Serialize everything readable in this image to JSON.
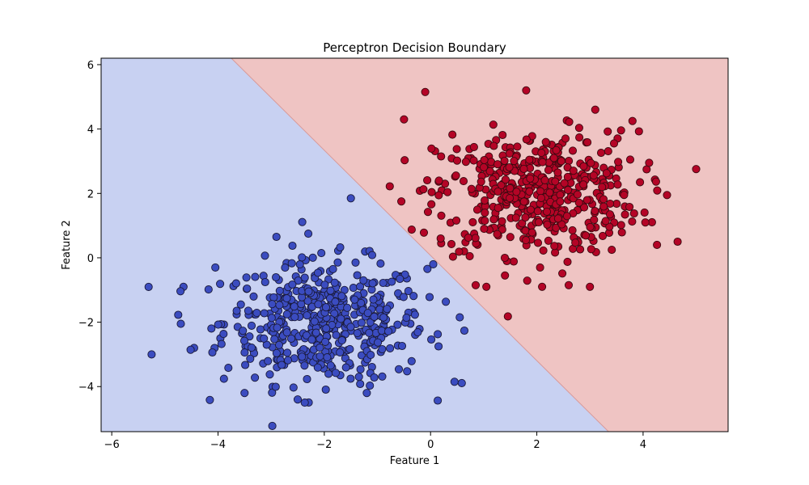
{
  "chart_data": {
    "type": "scatter",
    "title": "Perceptron Decision Boundary",
    "xlabel": "Feature 1",
    "ylabel": "Feature 2",
    "xlim": [
      -6.2,
      5.6
    ],
    "ylim": [
      -5.4,
      6.2
    ],
    "x_ticks": [
      -6,
      -4,
      -2,
      0,
      2,
      4
    ],
    "y_ticks": [
      -4,
      -2,
      0,
      2,
      4,
      6
    ],
    "x_tick_labels": [
      "−6",
      "−4",
      "−2",
      "0",
      "2",
      "4"
    ],
    "y_tick_labels": [
      "−4",
      "−2",
      "0",
      "2",
      "4",
      "6"
    ],
    "grid": false,
    "legend": "none",
    "decision_boundary": {
      "description": "linear boundary separating two regions",
      "points": [
        [
          -3.75,
          6.2
        ],
        [
          3.35,
          -5.4
        ]
      ],
      "region_colors": {
        "class_0": "#c8d1f2",
        "class_1": "#efc4c3"
      }
    },
    "series": [
      {
        "class": 0,
        "color": "#3b4cc0",
        "edge_color": "#1a1a3a",
        "center": [
          -2.0,
          -2.0
        ],
        "spread": 1.0,
        "count": 500,
        "outlier_points": [
          [
            -5.25,
            -3.0
          ],
          [
            -4.65,
            -0.9
          ],
          [
            -4.7,
            -2.05
          ],
          [
            -4.45,
            -2.8
          ],
          [
            -4.05,
            -0.3
          ],
          [
            -2.3,
            0.75
          ],
          [
            -1.5,
            1.85
          ],
          [
            -2.9,
            0.65
          ],
          [
            0.05,
            -0.2
          ],
          [
            0.45,
            -3.85
          ],
          [
            0.15,
            -2.75
          ],
          [
            -2.5,
            -4.4
          ],
          [
            -3.5,
            -4.2
          ],
          [
            -1.2,
            -4.2
          ],
          [
            0.55,
            -1.85
          ]
        ]
      },
      {
        "class": 1,
        "color": "#b40426",
        "edge_color": "#3a0a10",
        "center": [
          2.0,
          2.0
        ],
        "spread": 1.0,
        "count": 500,
        "outlier_points": [
          [
            -0.1,
            5.15
          ],
          [
            1.8,
            5.2
          ],
          [
            -0.5,
            4.3
          ],
          [
            4.65,
            0.5
          ],
          [
            -0.55,
            1.75
          ],
          [
            0.2,
            0.45
          ],
          [
            1.4,
            -0.55
          ],
          [
            0.85,
            -0.85
          ],
          [
            1.05,
            -0.9
          ],
          [
            2.6,
            -0.85
          ],
          [
            3.0,
            -0.9
          ],
          [
            2.1,
            -0.9
          ],
          [
            4.45,
            1.95
          ],
          [
            3.8,
            4.25
          ],
          [
            3.1,
            4.6
          ]
        ]
      }
    ]
  }
}
